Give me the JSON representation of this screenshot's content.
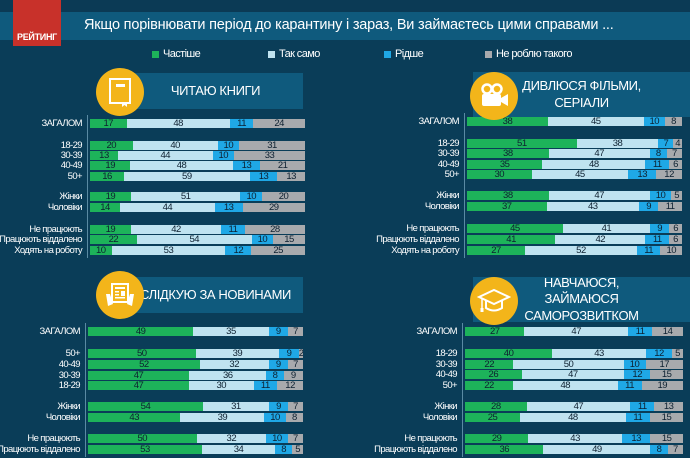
{
  "brand": {
    "logo_text": "РЕЙТИНГ",
    "logo_color": "#c8312a"
  },
  "title": "Якщо порівнювати  період до карантину і зараз, Ви займаєтесь цими справами  ...",
  "legend": [
    {
      "label": "Частіше",
      "color": "#1db35a"
    },
    {
      "label": "Так само",
      "color": "#bfe3f0"
    },
    {
      "label": "Рідше",
      "color": "#1fa8e6"
    },
    {
      "label": "Не роблю такого",
      "color": "#a8aaad"
    }
  ],
  "chart_data": [
    {
      "type": "bar",
      "stacked": true,
      "orientation": "horizontal",
      "title": "ЧИТАЮ КНИГИ",
      "icon": "book-icon",
      "series_names": [
        "Частіше",
        "Так само",
        "Рідше",
        "Не роблю такого"
      ],
      "categories": [
        "ЗАГАЛОМ",
        "18-29",
        "30-39",
        "40-49",
        "50+",
        "Жінки",
        "Чоловіки",
        "Не працюють",
        "Працюють віддалено",
        "Ходять на роботу"
      ],
      "groups": [
        [
          0
        ],
        [
          1,
          2,
          3,
          4
        ],
        [
          5,
          6
        ],
        [
          7,
          8,
          9
        ]
      ],
      "values": [
        [
          17,
          48,
          11,
          24
        ],
        [
          20,
          40,
          10,
          31
        ],
        [
          13,
          44,
          10,
          33
        ],
        [
          19,
          48,
          13,
          21
        ],
        [
          16,
          59,
          13,
          13
        ],
        [
          19,
          51,
          10,
          20
        ],
        [
          14,
          44,
          13,
          29
        ],
        [
          19,
          42,
          11,
          28
        ],
        [
          22,
          54,
          10,
          15
        ],
        [
          10,
          53,
          12,
          25
        ]
      ]
    },
    {
      "type": "bar",
      "stacked": true,
      "orientation": "horizontal",
      "title": "ДИВЛЮСЯ ФІЛЬМИ, СЕРІАЛИ",
      "icon": "video-camera-icon",
      "series_names": [
        "Частіше",
        "Так само",
        "Рідше",
        "Не роблю такого"
      ],
      "categories": [
        "ЗАГАЛОМ",
        "18-29",
        "30-39",
        "40-49",
        "50+",
        "Жінки",
        "Чоловіки",
        "Не працюють",
        "Працюють віддалено",
        "Ходять на роботу"
      ],
      "groups": [
        [
          0
        ],
        [
          1,
          2,
          3,
          4
        ],
        [
          5,
          6
        ],
        [
          7,
          8,
          9
        ]
      ],
      "values": [
        [
          38,
          45,
          10,
          8
        ],
        [
          51,
          38,
          7,
          4
        ],
        [
          38,
          47,
          8,
          7
        ],
        [
          35,
          48,
          11,
          6
        ],
        [
          30,
          45,
          13,
          12
        ],
        [
          38,
          47,
          10,
          5
        ],
        [
          37,
          43,
          9,
          11
        ],
        [
          45,
          41,
          9,
          6
        ],
        [
          41,
          42,
          11,
          6
        ],
        [
          27,
          52,
          11,
          10
        ]
      ]
    },
    {
      "type": "bar",
      "stacked": true,
      "orientation": "horizontal",
      "title": "СЛІДКУЮ ЗА НОВИНАМИ",
      "icon": "newspaper-icon",
      "series_names": [
        "Частіше",
        "Так само",
        "Рідше",
        "Не роблю такого"
      ],
      "categories": [
        "ЗАГАЛОМ",
        "50+",
        "40-49",
        "30-39",
        "18-29",
        "Жінки",
        "Чоловіки",
        "Не працюють",
        "Працюють віддалено"
      ],
      "groups": [
        [
          0
        ],
        [
          1,
          2,
          3,
          4
        ],
        [
          5,
          6
        ],
        [
          7,
          8
        ]
      ],
      "values": [
        [
          49,
          35,
          9,
          7
        ],
        [
          50,
          39,
          9,
          2
        ],
        [
          52,
          32,
          9,
          7
        ],
        [
          47,
          36,
          8,
          9
        ],
        [
          47,
          30,
          11,
          12
        ],
        [
          54,
          31,
          9,
          7
        ],
        [
          43,
          39,
          10,
          8
        ],
        [
          50,
          32,
          10,
          7
        ],
        [
          53,
          34,
          8,
          5
        ]
      ]
    },
    {
      "type": "bar",
      "stacked": true,
      "orientation": "horizontal",
      "title": "НАВЧАЮСЯ, ЗАЙМАЮСЯ САМОРОЗВИТКОМ",
      "icon": "graduation-cap-icon",
      "series_names": [
        "Частіше",
        "Так само",
        "Рідше",
        "Не роблю такого"
      ],
      "categories": [
        "ЗАГАЛОМ",
        "18-29",
        "30-39",
        "40-49",
        "50+",
        "Жінки",
        "Чоловіки",
        "Не працюють",
        "Працюють віддалено"
      ],
      "groups": [
        [
          0
        ],
        [
          1,
          2,
          3,
          4
        ],
        [
          5,
          6
        ],
        [
          7,
          8
        ]
      ],
      "values": [
        [
          27,
          47,
          11,
          14
        ],
        [
          40,
          43,
          12,
          5
        ],
        [
          22,
          50,
          10,
          17
        ],
        [
          26,
          47,
          12,
          15
        ],
        [
          22,
          48,
          11,
          19
        ],
        [
          28,
          47,
          11,
          13
        ],
        [
          25,
          48,
          11,
          15
        ],
        [
          29,
          43,
          13,
          15
        ],
        [
          36,
          49,
          8,
          7
        ]
      ]
    }
  ]
}
